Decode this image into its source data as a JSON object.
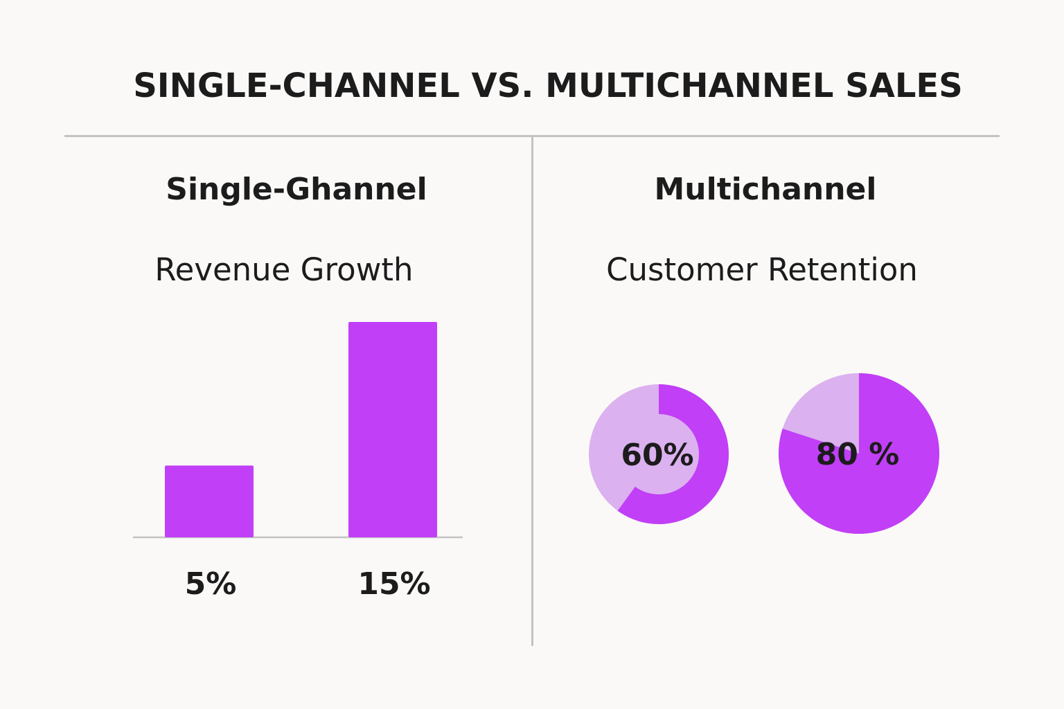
{
  "title": "SINGLE-CHANNEL VS. MULTICHANNEL SALES",
  "colors": {
    "accent": "#c13ff6",
    "accent_light": "#dbb1ef",
    "divider": "#c2c2c2",
    "background": "#faf9f7",
    "text": "#1c1c1c"
  },
  "chart_data": [
    {
      "type": "bar",
      "panel_title": "Single-Ghannel",
      "title": "Revenue Growth",
      "categories": [
        "",
        ""
      ],
      "values": [
        5,
        15
      ],
      "value_labels": [
        "5%",
        "15%"
      ],
      "unit": "%",
      "ylim": [
        0,
        15
      ],
      "grid": false
    },
    {
      "type": "pie",
      "panel_title": "Multichannel",
      "title": "Customer Retention",
      "charts": [
        {
          "style": "donut",
          "value": 60,
          "label": "60%"
        },
        {
          "style": "pie",
          "value": 80,
          "label": "80 %"
        }
      ]
    }
  ]
}
